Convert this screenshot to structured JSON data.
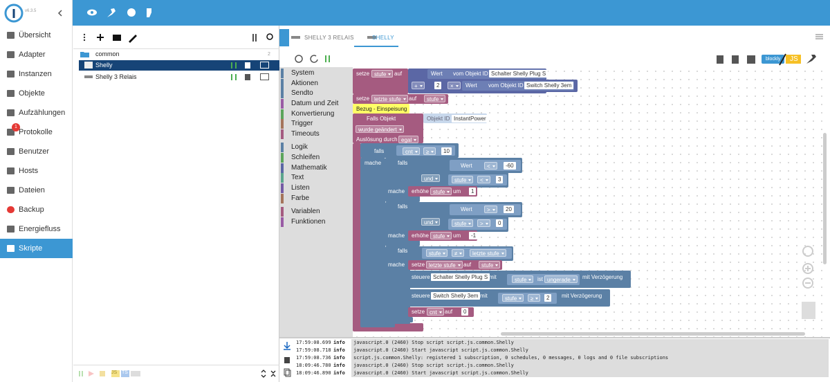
{
  "app": {
    "version": "v6.3.5"
  },
  "sidebar": {
    "items": [
      "Übersicht",
      "Adapter",
      "Instanzen",
      "Objekte",
      "Aufzählungen",
      "Protokolle",
      "Benutzer",
      "Hosts",
      "Dateien",
      "Backup",
      "Energiefluss",
      "Skripte"
    ],
    "badge": 1
  },
  "scripts": {
    "folder": "common",
    "count": 2,
    "items": [
      "Shelly",
      "Shelly 3 Relais"
    ]
  },
  "tabs": [
    "SHELLY 3 RELAIS",
    "SHELLY"
  ],
  "toolbar": {
    "blockly": "blockly",
    "js": "JS"
  },
  "toolbox": [
    "System",
    "Aktionen",
    "Sendto",
    "Datum und Zeit",
    "Konvertierung",
    "Trigger",
    "Timeouts",
    "Logik",
    "Schleifen",
    "Mathematik",
    "Text",
    "Listen",
    "Farbe",
    "Variablen",
    "Funktionen"
  ],
  "workspace": {
    "lines": [
      [
        "setze",
        "stufe",
        "auf",
        "Wert",
        "vom Objekt ID",
        "Schalter Shelly Plug S"
      ],
      [
        "+",
        "2",
        "×",
        "Wert",
        "vom Objekt ID",
        "Switch Shelly 3em"
      ],
      [
        "setze",
        "letzte stufe",
        "auf",
        "stufe"
      ],
      [
        "Bezug - Einspeisung"
      ],
      [
        "Falls Objekt",
        "Objekt ID",
        "InstantPower"
      ],
      [
        "wurde geändert"
      ],
      [
        "Auslösung durch",
        "egal"
      ],
      [
        "falls",
        "cnt",
        "≥",
        "10"
      ],
      [
        "mache",
        "falls"
      ],
      [
        "Wert",
        "<",
        "-60"
      ],
      [
        "und"
      ],
      [
        "stufe",
        "<",
        "3"
      ],
      [
        "mache",
        "erhöhe",
        "stufe",
        "um",
        "1"
      ],
      [
        "falls"
      ],
      [
        "Wert",
        ">",
        "20"
      ],
      [
        "und"
      ],
      [
        "stufe",
        ">",
        "0"
      ],
      [
        "mache",
        "erhöhe",
        "stufe",
        "um",
        "-1"
      ],
      [
        "falls"
      ],
      [
        "stufe",
        "≠",
        "letzte stufe"
      ],
      [
        "mache",
        "setze",
        "letzte stufe",
        "auf",
        "stufe"
      ],
      [
        "steuere",
        "Schalter Shelly Plug S",
        "mit",
        "mit Verzögerung"
      ],
      [
        "stufe",
        "ist",
        "ungerade"
      ],
      [
        "steuere",
        "Switch Shelly 3em",
        "mit",
        "mit Verzögerung"
      ],
      [
        "stufe",
        "≥",
        "2"
      ],
      [
        "setze",
        "cnt",
        "auf",
        "0"
      ]
    ]
  },
  "log": {
    "rows": [
      {
        "time": "17:59:08.699",
        "level": "info",
        "message": "javascript.0 (2460) Stop script script.js.common.Shelly"
      },
      {
        "time": "17:59:08.718",
        "level": "info",
        "message": "javascript.0 (2460) Start javascript script.js.common.Shelly"
      },
      {
        "time": "17:59:08.736",
        "level": "info",
        "message": "script.js.common.Shelly: registered 1 subscription, 0 schedules, 0 messages, 0 logs and 0 file subscriptions"
      },
      {
        "time": "18:09:46.780",
        "level": "info",
        "message": "javascript.0 (2460) Stop script script.js.common.Shelly"
      },
      {
        "time": "18:09:46.890",
        "level": "info",
        "message": "javascript.0 (2460) Start javascript script.js.common.Shelly"
      }
    ]
  },
  "footer": {
    "js": "JS",
    "ts": "TS"
  }
}
